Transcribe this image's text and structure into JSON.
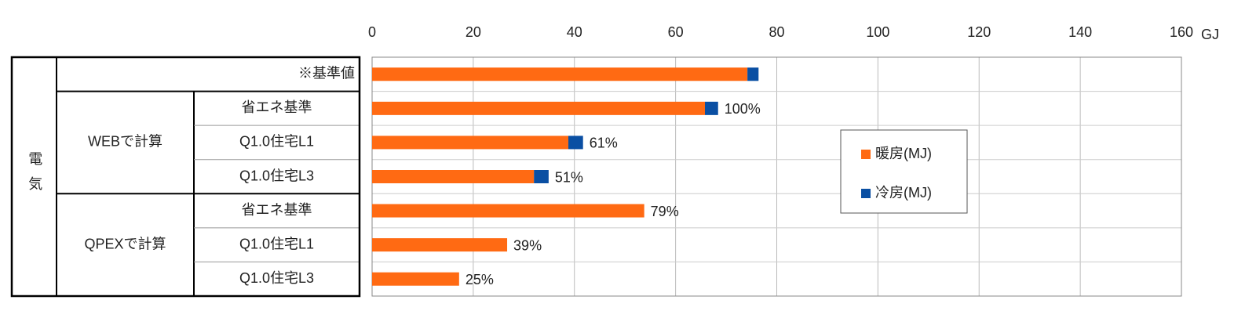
{
  "chart_data": {
    "type": "stacked-barh",
    "row_header": "電気",
    "category_groups": [
      {
        "label": null,
        "categories": [
          "※基準値"
        ]
      },
      {
        "label": "WEBで計算",
        "categories": [
          "省エネ基準",
          "Q1.0住宅L1",
          "Q1.0住宅L3"
        ]
      },
      {
        "label": "QPEXで計算",
        "categories": [
          "省エネ基準",
          "Q1.0住宅L1",
          "Q1.0住宅L3"
        ]
      }
    ],
    "series": [
      {
        "name": "暖房(MJ)",
        "color": "#ff6a13",
        "values": [
          74.2,
          65.8,
          38.8,
          32.0,
          53.8,
          26.7,
          17.2
        ]
      },
      {
        "name": "冷房(MJ)",
        "color": "#0a4fa3",
        "values": [
          2.2,
          2.6,
          2.9,
          2.9,
          0,
          0,
          0
        ]
      }
    ],
    "annotations": [
      null,
      "100%",
      "61%",
      "51%",
      "79%",
      "39%",
      "25%"
    ],
    "x_unit": "GJ",
    "xlim": [
      0,
      160
    ],
    "xticks": [
      0,
      20,
      40,
      60,
      80,
      100,
      120,
      140,
      160
    ],
    "grid": true,
    "legend": "right"
  }
}
